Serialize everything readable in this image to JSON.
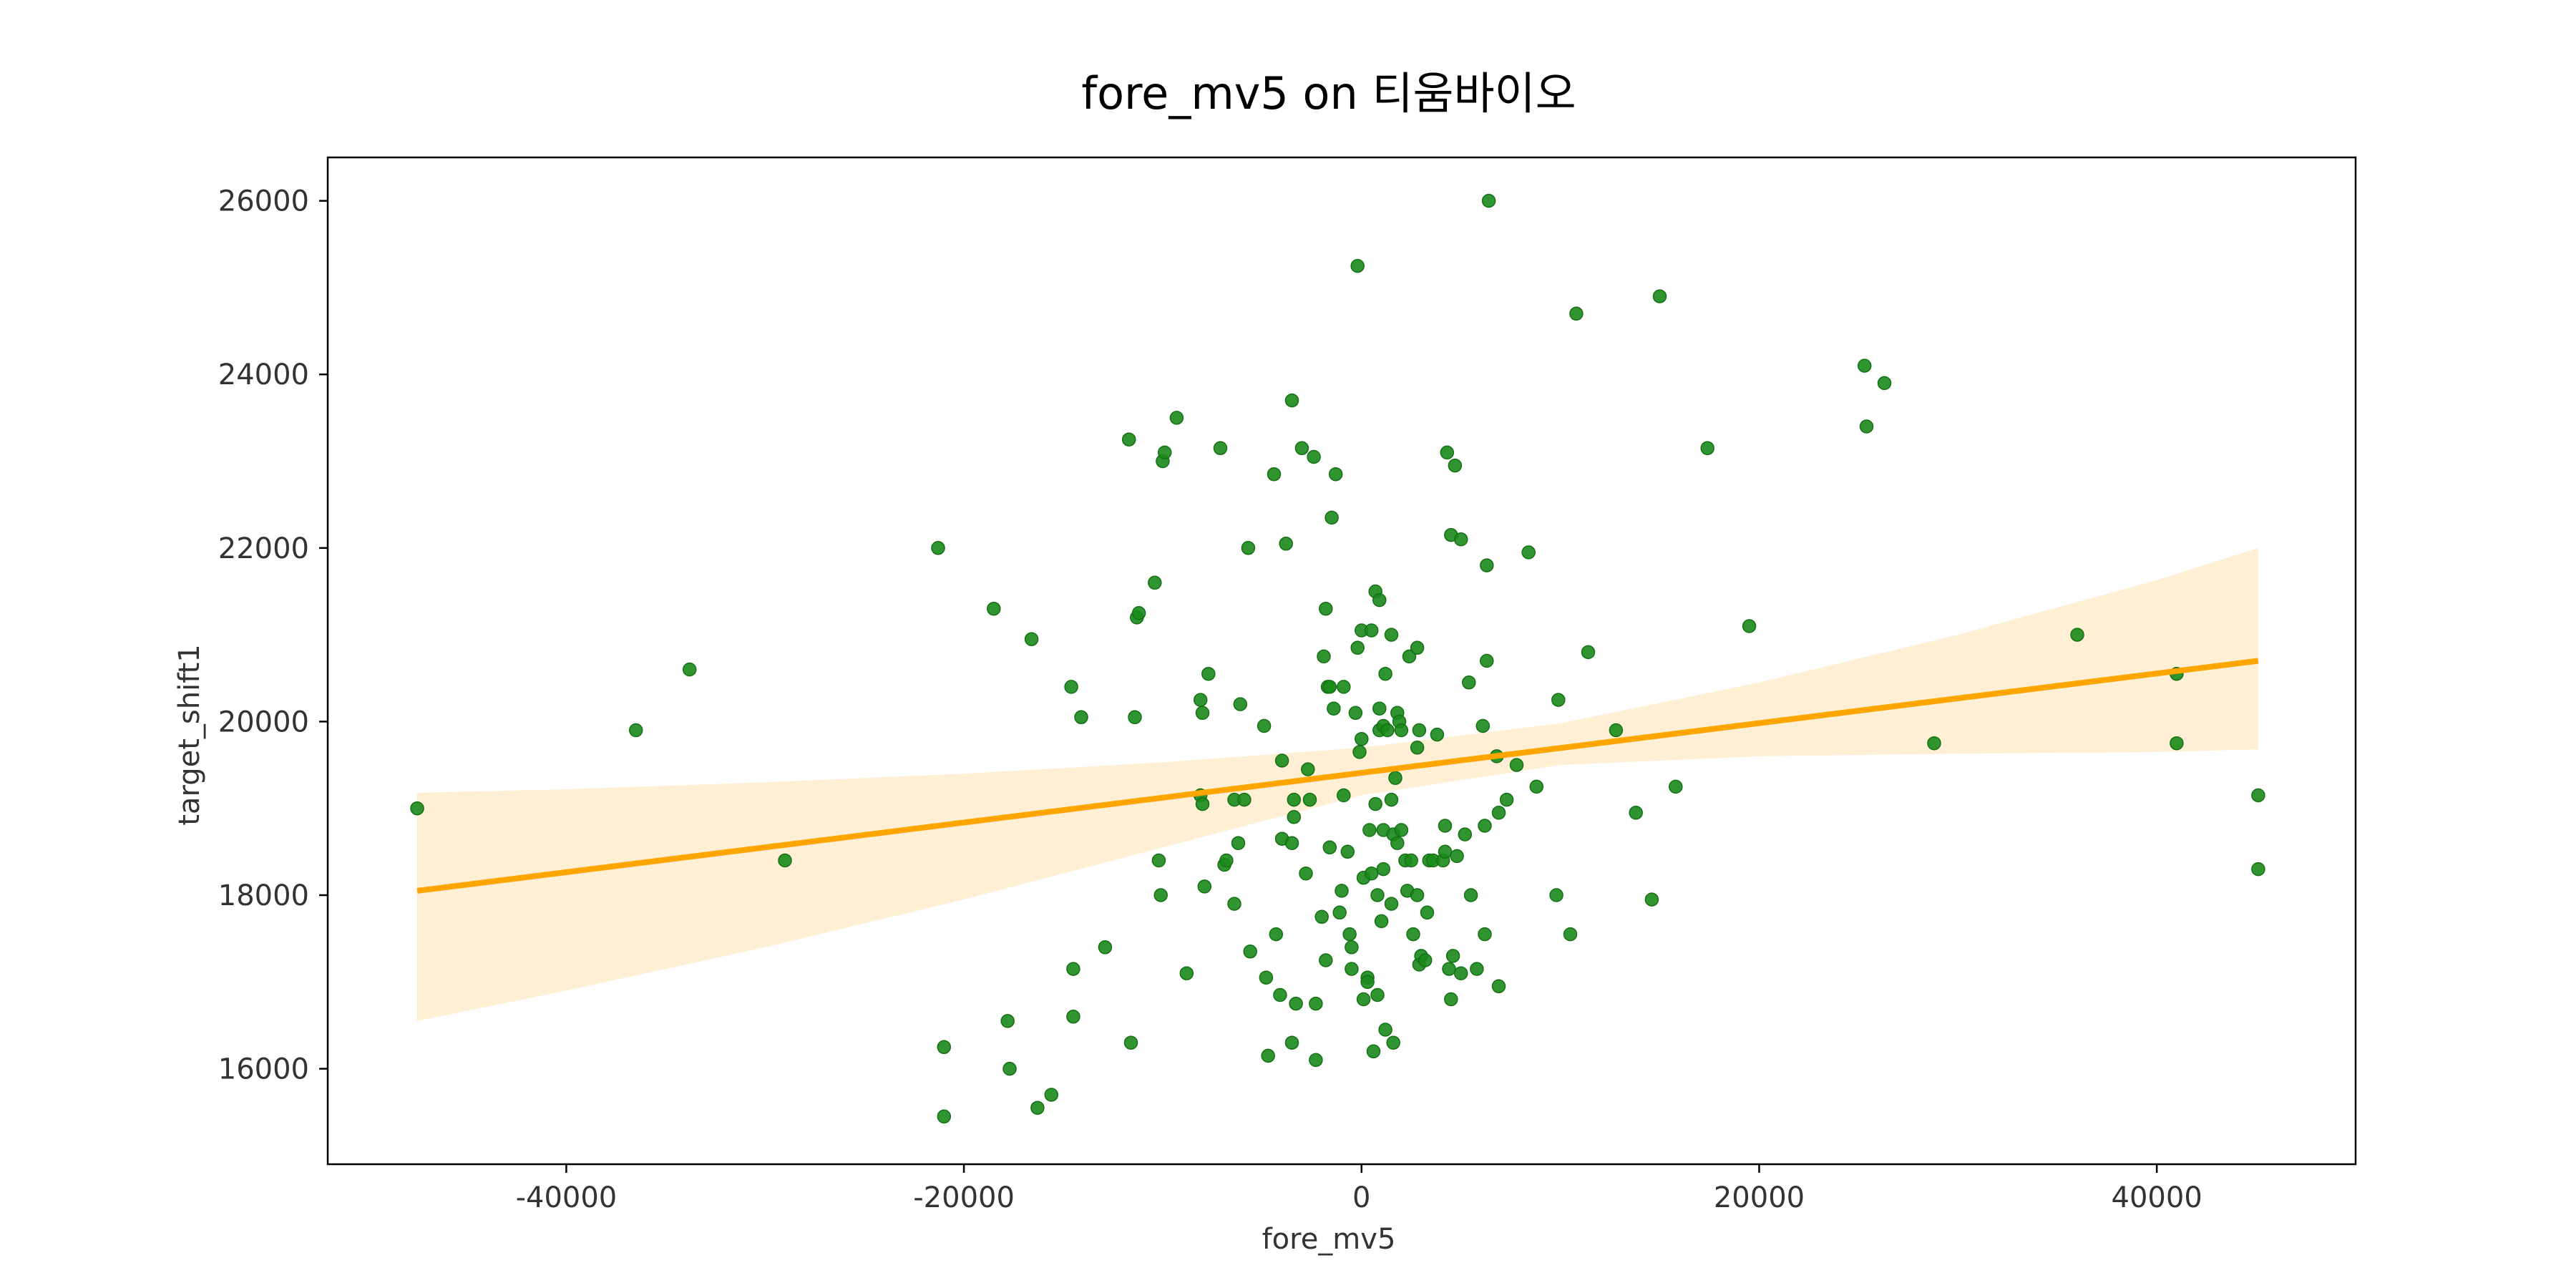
{
  "chart_data": {
    "type": "scatter",
    "title": "fore_mv5 on 티움바이오",
    "xlabel": "fore_mv5",
    "ylabel": "target_shift1",
    "xlim": [
      -52000,
      50000
    ],
    "ylim": [
      14900,
      26500
    ],
    "xticks": [
      -40000,
      -20000,
      0,
      20000,
      40000
    ],
    "yticks": [
      16000,
      18000,
      20000,
      22000,
      24000,
      26000
    ],
    "grid": false,
    "point_color": "#1a8a1a",
    "line_color": "#ffa500",
    "band_color": "#ffefd5",
    "points": [
      [
        -47500,
        19000
      ],
      [
        -36500,
        19900
      ],
      [
        -33800,
        20600
      ],
      [
        -29000,
        18400
      ],
      [
        -21300,
        22000
      ],
      [
        -21000,
        16250
      ],
      [
        -21000,
        15450
      ],
      [
        -18500,
        21300
      ],
      [
        -17800,
        16550
      ],
      [
        -17700,
        16000
      ],
      [
        -16600,
        20950
      ],
      [
        -16300,
        15550
      ],
      [
        -15600,
        15700
      ],
      [
        -14600,
        20400
      ],
      [
        -14500,
        16600
      ],
      [
        -14500,
        17150
      ],
      [
        -14100,
        20050
      ],
      [
        -12900,
        17400
      ],
      [
        -11700,
        23250
      ],
      [
        -11600,
        16300
      ],
      [
        -11400,
        20050
      ],
      [
        -11300,
        21200
      ],
      [
        -11200,
        21250
      ],
      [
        -10400,
        21600
      ],
      [
        -10200,
        18400
      ],
      [
        -10100,
        18000
      ],
      [
        -10000,
        23000
      ],
      [
        -9900,
        23100
      ],
      [
        -9300,
        23500
      ],
      [
        -8800,
        17100
      ],
      [
        -8100,
        20250
      ],
      [
        -8100,
        19150
      ],
      [
        -8000,
        19050
      ],
      [
        -8000,
        20100
      ],
      [
        -7900,
        18100
      ],
      [
        -7700,
        20550
      ],
      [
        -7100,
        23150
      ],
      [
        -6900,
        18350
      ],
      [
        -6800,
        18400
      ],
      [
        -6400,
        19100
      ],
      [
        -6400,
        17900
      ],
      [
        -6200,
        18600
      ],
      [
        -6100,
        20200
      ],
      [
        -5900,
        19100
      ],
      [
        -5700,
        22000
      ],
      [
        -5600,
        17350
      ],
      [
        -4900,
        19950
      ],
      [
        -4800,
        17050
      ],
      [
        -4700,
        16150
      ],
      [
        -4400,
        22850
      ],
      [
        -4300,
        17550
      ],
      [
        -4100,
        16850
      ],
      [
        -4000,
        19550
      ],
      [
        -4000,
        18650
      ],
      [
        -3800,
        22050
      ],
      [
        -3500,
        23700
      ],
      [
        -3500,
        16300
      ],
      [
        -3500,
        18600
      ],
      [
        -3400,
        18900
      ],
      [
        -3400,
        19100
      ],
      [
        -3300,
        16750
      ],
      [
        -3000,
        23150
      ],
      [
        -2800,
        18250
      ],
      [
        -2700,
        19450
      ],
      [
        -2600,
        19100
      ],
      [
        -2400,
        23050
      ],
      [
        -2300,
        16750
      ],
      [
        -2300,
        16100
      ],
      [
        -2000,
        17750
      ],
      [
        -1900,
        20750
      ],
      [
        -1800,
        21300
      ],
      [
        -1800,
        17250
      ],
      [
        -1700,
        20400
      ],
      [
        -1600,
        18550
      ],
      [
        -1600,
        20400
      ],
      [
        -1500,
        22350
      ],
      [
        -1400,
        20150
      ],
      [
        -1300,
        22850
      ],
      [
        -1100,
        17800
      ],
      [
        -1000,
        18050
      ],
      [
        -900,
        20400
      ],
      [
        -900,
        19150
      ],
      [
        -700,
        18500
      ],
      [
        -600,
        17550
      ],
      [
        -500,
        17400
      ],
      [
        -500,
        17150
      ],
      [
        -300,
        20100
      ],
      [
        -200,
        20850
      ],
      [
        -200,
        25250
      ],
      [
        -100,
        19650
      ],
      [
        0,
        19800
      ],
      [
        0,
        21050
      ],
      [
        100,
        18200
      ],
      [
        100,
        16800
      ],
      [
        300,
        17050
      ],
      [
        300,
        17000
      ],
      [
        400,
        18750
      ],
      [
        500,
        18250
      ],
      [
        500,
        21050
      ],
      [
        600,
        16200
      ],
      [
        700,
        21500
      ],
      [
        700,
        19050
      ],
      [
        800,
        16850
      ],
      [
        800,
        18000
      ],
      [
        900,
        21400
      ],
      [
        900,
        20150
      ],
      [
        900,
        19900
      ],
      [
        1000,
        17700
      ],
      [
        1100,
        18750
      ],
      [
        1100,
        18300
      ],
      [
        1100,
        19950
      ],
      [
        1200,
        16450
      ],
      [
        1200,
        20550
      ],
      [
        1300,
        19900
      ],
      [
        1500,
        21000
      ],
      [
        1500,
        19100
      ],
      [
        1500,
        17900
      ],
      [
        1600,
        18700
      ],
      [
        1600,
        16300
      ],
      [
        1700,
        19350
      ],
      [
        1800,
        18600
      ],
      [
        1800,
        20100
      ],
      [
        1900,
        20000
      ],
      [
        2000,
        19900
      ],
      [
        2000,
        18750
      ],
      [
        2200,
        18400
      ],
      [
        2300,
        18050
      ],
      [
        2400,
        20750
      ],
      [
        2500,
        18400
      ],
      [
        2600,
        17550
      ],
      [
        2800,
        18000
      ],
      [
        2800,
        20850
      ],
      [
        2800,
        19700
      ],
      [
        2900,
        17200
      ],
      [
        2900,
        19900
      ],
      [
        3000,
        17300
      ],
      [
        3200,
        17250
      ],
      [
        3300,
        17800
      ],
      [
        3400,
        18400
      ],
      [
        3600,
        18400
      ],
      [
        3800,
        19850
      ],
      [
        4100,
        18400
      ],
      [
        4200,
        18800
      ],
      [
        4200,
        18500
      ],
      [
        4300,
        23100
      ],
      [
        4400,
        17150
      ],
      [
        4500,
        22150
      ],
      [
        4500,
        16800
      ],
      [
        4600,
        17300
      ],
      [
        4700,
        22950
      ],
      [
        4800,
        18450
      ],
      [
        5000,
        22100
      ],
      [
        5000,
        17100
      ],
      [
        5200,
        18700
      ],
      [
        5400,
        20450
      ],
      [
        5500,
        18000
      ],
      [
        5800,
        17150
      ],
      [
        6100,
        19950
      ],
      [
        6200,
        18800
      ],
      [
        6200,
        17550
      ],
      [
        6300,
        20700
      ],
      [
        6300,
        21800
      ],
      [
        6400,
        26000
      ],
      [
        6800,
        19600
      ],
      [
        6900,
        16950
      ],
      [
        6900,
        18950
      ],
      [
        7300,
        19100
      ],
      [
        7800,
        19500
      ],
      [
        8400,
        21950
      ],
      [
        8800,
        19250
      ],
      [
        9800,
        18000
      ],
      [
        9900,
        20250
      ],
      [
        10500,
        17550
      ],
      [
        10800,
        24700
      ],
      [
        11400,
        20800
      ],
      [
        12800,
        19900
      ],
      [
        13800,
        18950
      ],
      [
        14600,
        17950
      ],
      [
        15000,
        24900
      ],
      [
        15800,
        19250
      ],
      [
        17400,
        23150
      ],
      [
        19500,
        21100
      ],
      [
        25300,
        24100
      ],
      [
        25400,
        23400
      ],
      [
        26300,
        23900
      ],
      [
        28800,
        19750
      ],
      [
        36000,
        21000
      ],
      [
        41000,
        20550
      ],
      [
        41000,
        19750
      ],
      [
        45100,
        19150
      ],
      [
        45100,
        18300
      ]
    ],
    "regression": {
      "x": [
        -47500,
        45100
      ],
      "y": [
        18050,
        20700
      ]
    },
    "confidence_band": {
      "x": [
        -47500,
        -40000,
        -30000,
        -20000,
        -10000,
        0,
        10000,
        20000,
        30000,
        40000,
        45100
      ],
      "upper": [
        19180,
        19220,
        19300,
        19400,
        19530,
        19700,
        19980,
        20450,
        21000,
        21630,
        22000
      ],
      "lower": [
        16550,
        16900,
        17400,
        17950,
        18550,
        19150,
        19500,
        19600,
        19630,
        19650,
        19680
      ]
    }
  }
}
